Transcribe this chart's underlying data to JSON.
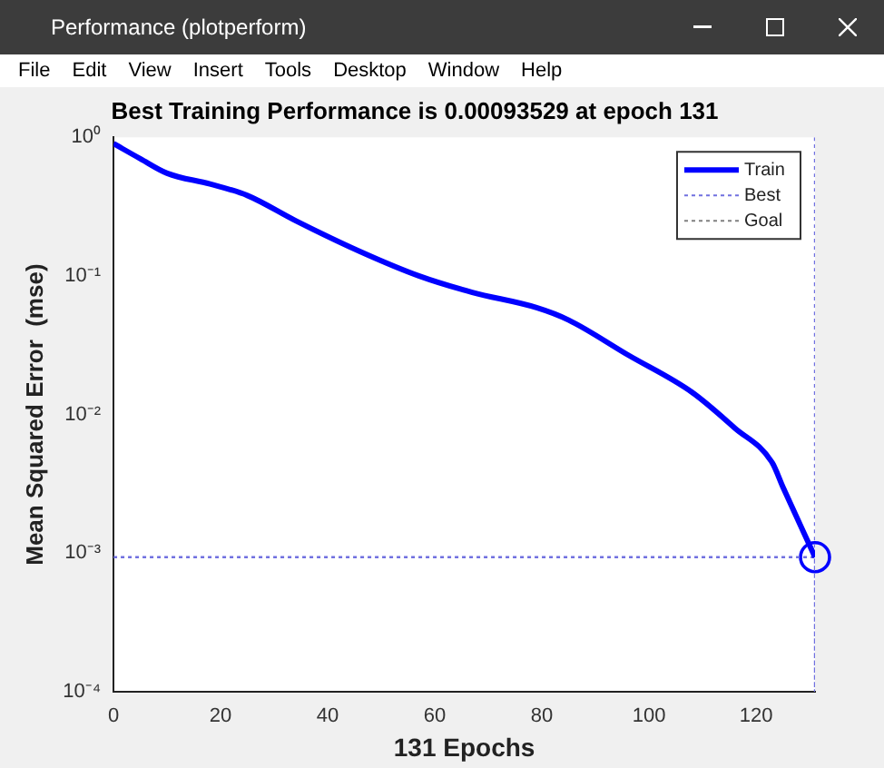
{
  "chart_data": {
    "type": "line",
    "title": "Best Training Performance is 0.00093529 at epoch 131",
    "xlabel": "131 Epochs",
    "ylabel": "Mean Squared Error  (mse)",
    "annotations": [
      "Performance (plotperform)",
      "File",
      "Edit",
      "View",
      "Insert",
      "Tools",
      "Desktop",
      "Window",
      "Help"
    ],
    "series": [
      {
        "name": "Train",
        "color": "#0000ff",
        "line_style": "solid",
        "x": [
          0,
          5,
          10,
          18,
          25,
          34,
          46,
          57,
          67,
          79,
          85,
          96,
          108,
          116,
          123,
          125,
          131
        ],
        "values": [
          0.9,
          0.7,
          0.55,
          0.46,
          0.38,
          0.25,
          0.15,
          0.1,
          0.076,
          0.059,
          0.048,
          0.027,
          0.0145,
          0.008,
          0.0045,
          0.003,
          0.00093529
        ]
      },
      {
        "name": "Best",
        "color": "#7070e0",
        "line_style": "dotted",
        "x": [
          131,
          131,
          131,
          0
        ],
        "values": [
          1,
          0.0001,
          0.00093529,
          0.00093529
        ]
      },
      {
        "name": "Goal",
        "color": "#808080",
        "line_style": "dotted"
      },
      {
        "type": "scatter",
        "color": "#0000ff",
        "marker": "circle",
        "x": [
          131
        ],
        "values": [
          0.00093529
        ]
      }
    ],
    "log": "y",
    "xlim": [
      0,
      131
    ],
    "xticks": [
      0,
      20,
      40,
      60,
      80,
      100,
      120
    ],
    "ylim": [
      0.0001,
      1
    ],
    "yticks": [
      {
        "value": 0.0001,
        "label": "10⁻⁴"
      },
      {
        "value": 0.001,
        "label": "10⁻³"
      },
      {
        "value": 0.01,
        "label": "10⁻²"
      },
      {
        "value": 0.1,
        "label": "10⁻¹"
      },
      {
        "value": 1,
        "label": "10⁰"
      }
    ],
    "grid": false,
    "legend": "top right"
  }
}
